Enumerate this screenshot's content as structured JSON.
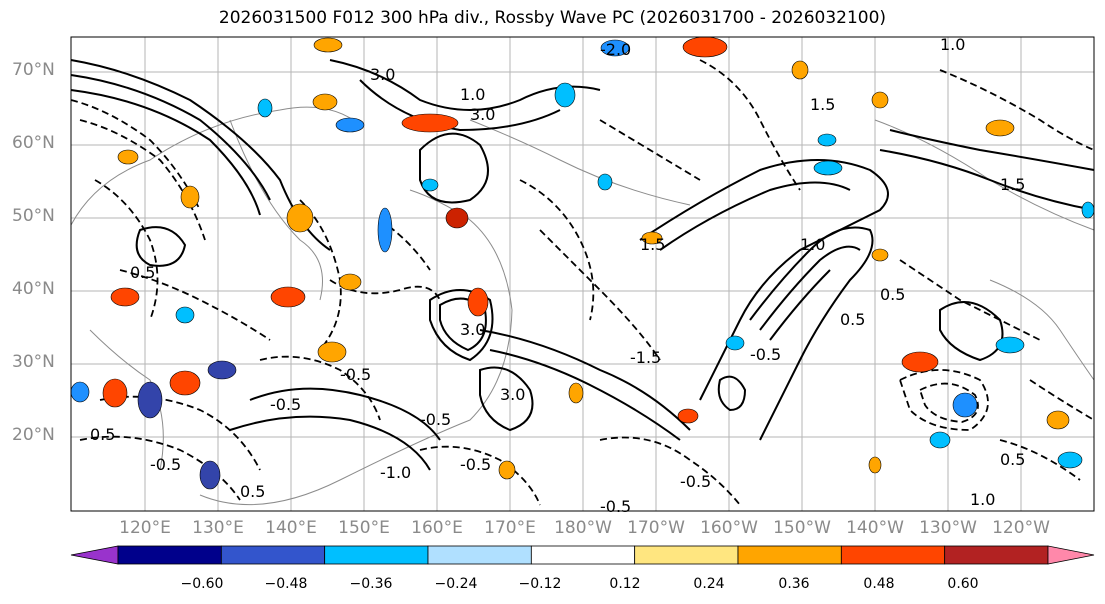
{
  "title": "2026031500 F012 300 hPa div., Rossby Wave PC (2026031700 - 2026032100)",
  "latitude_labels": [
    "70°N",
    "60°N",
    "50°N",
    "40°N",
    "30°N",
    "20°N"
  ],
  "longitude_labels": [
    "120°E",
    "130°E",
    "140°E",
    "150°E",
    "160°E",
    "170°E",
    "180°W",
    "170°W",
    "160°W",
    "150°W",
    "140°W",
    "130°W",
    "120°W"
  ],
  "colorbar": {
    "colors": [
      "#9933cc",
      "#00008b",
      "#3355cc",
      "#00bfff",
      "#b0e0ff",
      "#ffffff",
      "#ffe680",
      "#ffa500",
      "#ff4500",
      "#b22222",
      "#ff88aa"
    ],
    "ticks": [
      "−0.60",
      "−0.48",
      "−0.36",
      "−0.24",
      "−0.12",
      "0.12",
      "0.24",
      "0.36",
      "0.48",
      "0.60"
    ]
  },
  "contour_labels": [
    "3.0",
    "1.5",
    "1.0",
    "0.5",
    "-0.5",
    "-1.0",
    "-1.5",
    "-2.0"
  ],
  "fill_colors": {
    "orange": "#ffa500",
    "red": "#ff4500",
    "darkred": "#cc2200",
    "cyan": "#1e90ff",
    "blue": "#00bfff",
    "navy": "#3344aa",
    "yellow": "#ffe680"
  }
}
